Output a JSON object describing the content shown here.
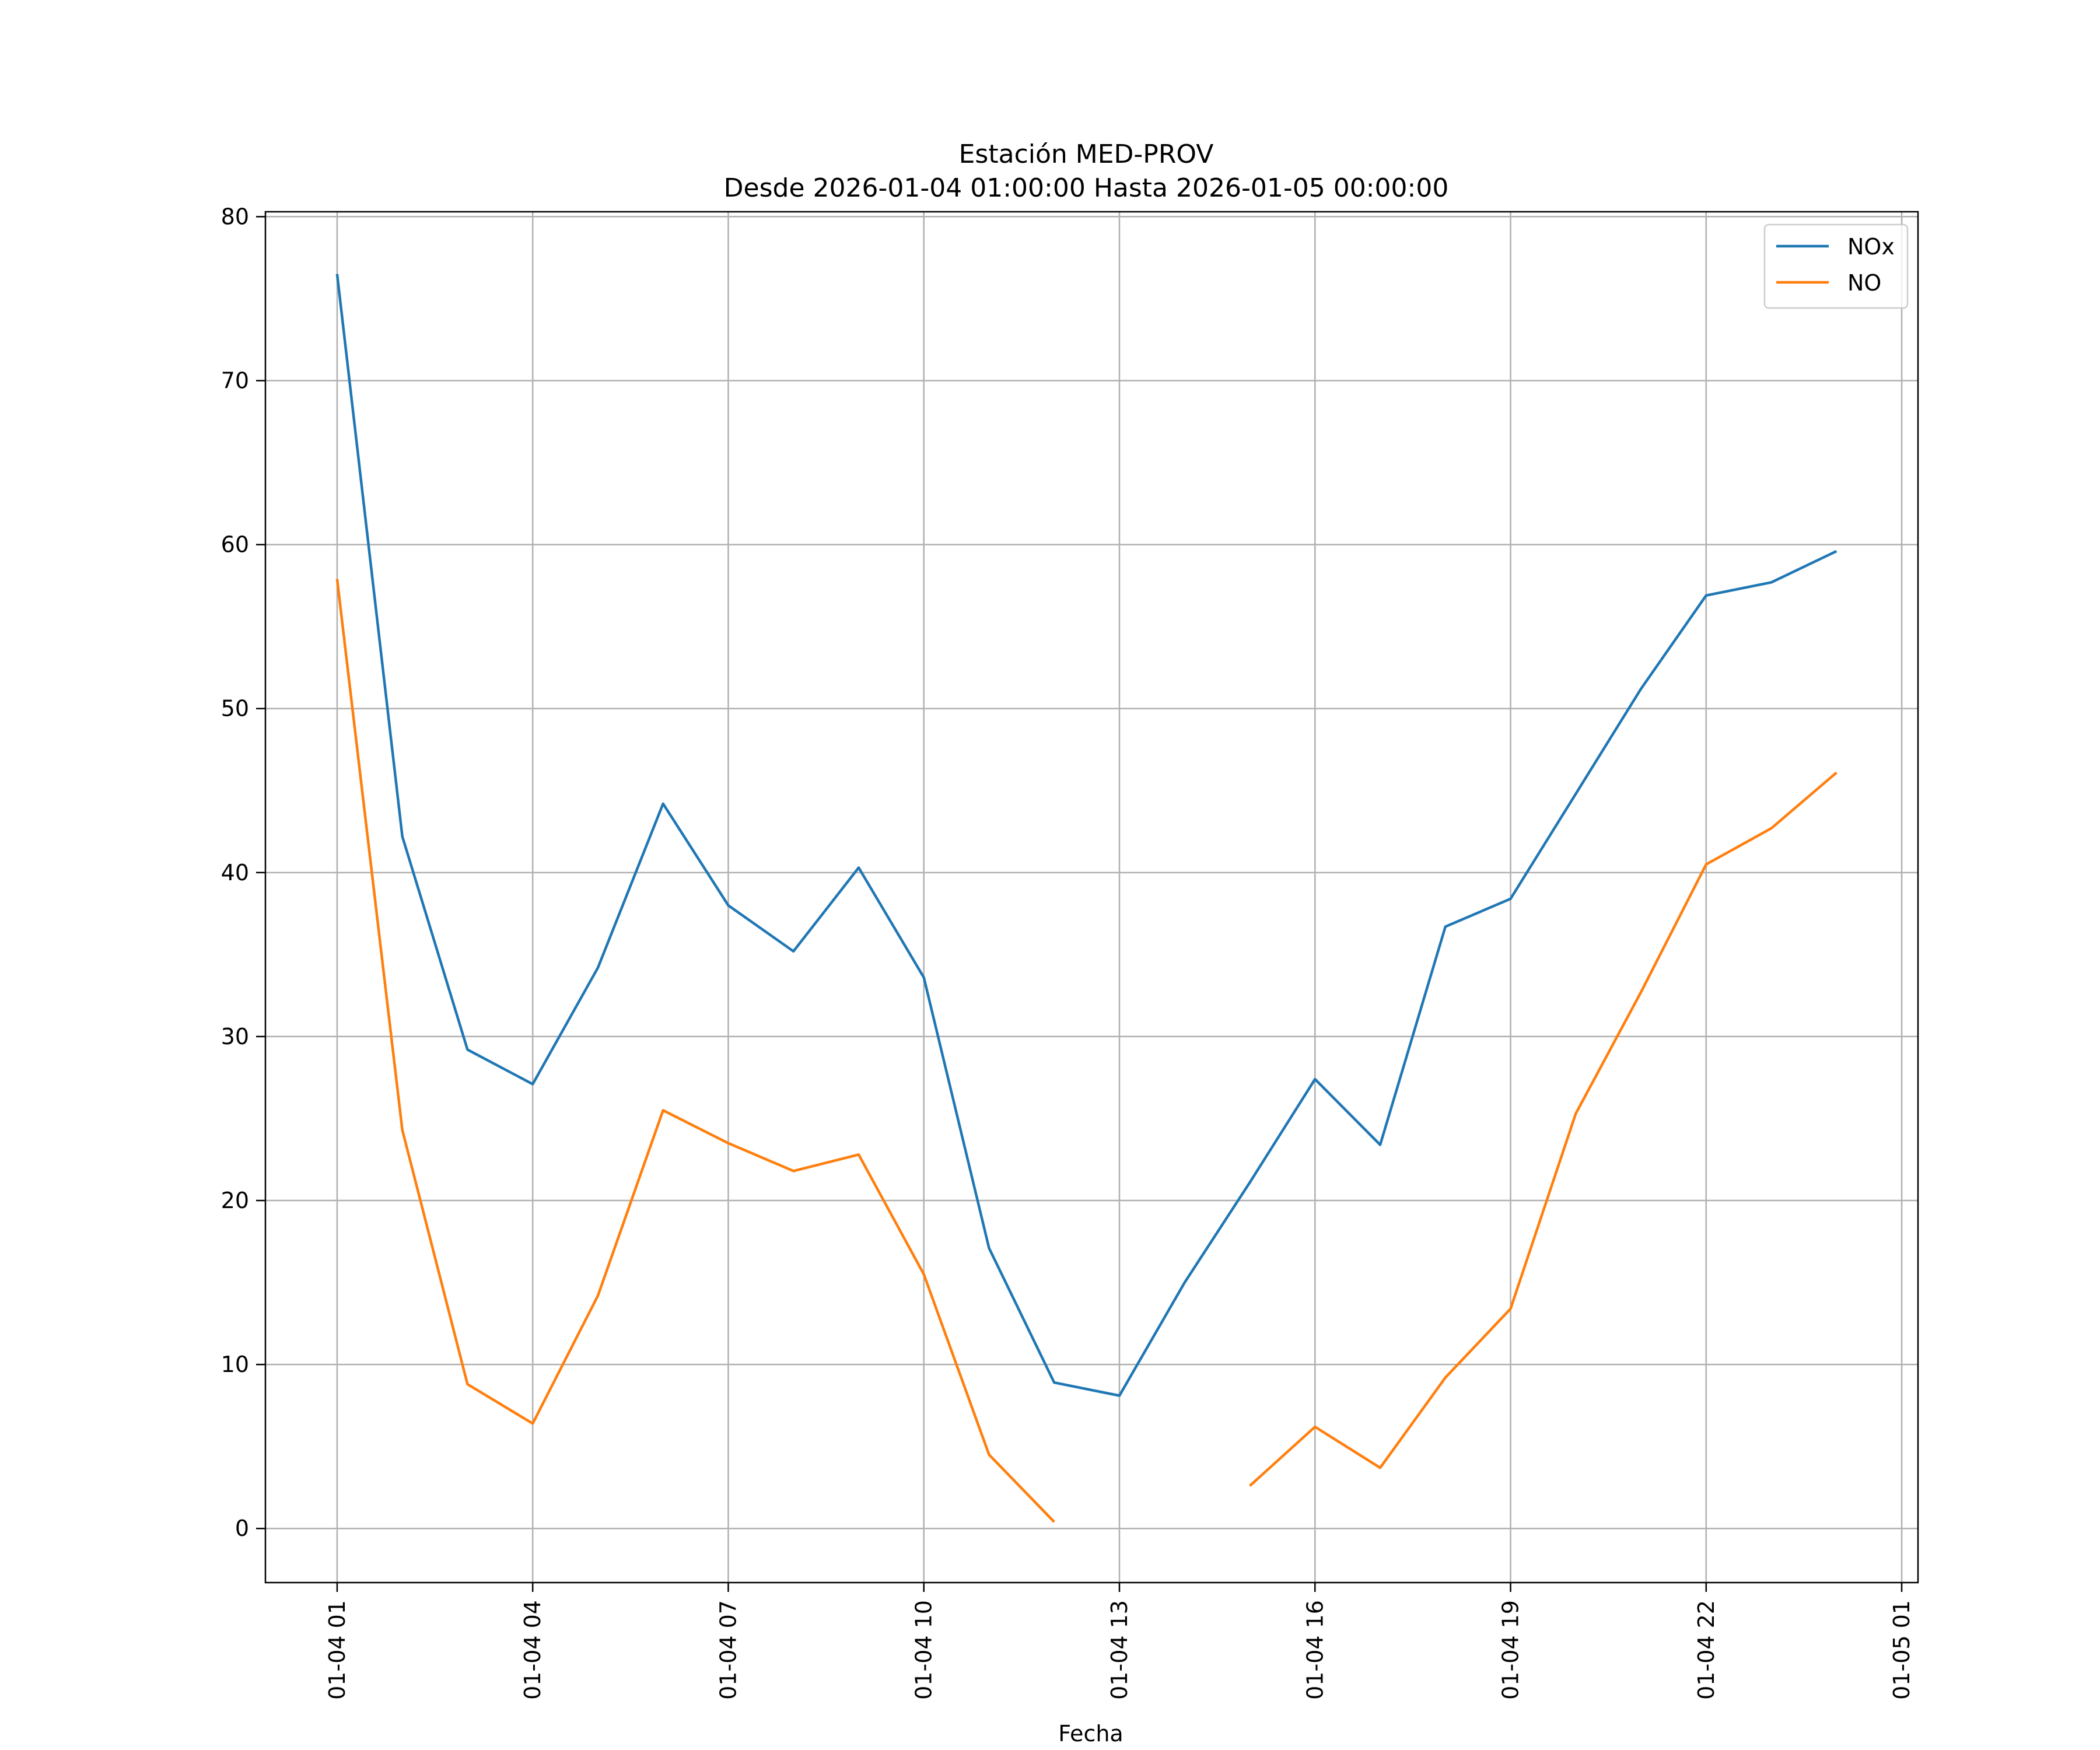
{
  "chart_data": {
    "type": "line",
    "title": "Estación MED-PROV",
    "subtitle": "Desde 2026-01-04 01:00:00 Hasta 2026-01-05 00:00:00",
    "xlabel": "Fecha",
    "ylabel": "",
    "x_hours": [
      1,
      2,
      3,
      4,
      5,
      6,
      7,
      8,
      9,
      10,
      11,
      12,
      13,
      14,
      15,
      16,
      17,
      18,
      19,
      20,
      21,
      22,
      23,
      24
    ],
    "xlim": [
      -0.1,
      25.25
    ],
    "ylim": [
      -3.3,
      80.3
    ],
    "grid": true,
    "legend_position": "top-right",
    "xticks": [
      {
        "hour": 1,
        "label": "01-04 01"
      },
      {
        "hour": 4,
        "label": "01-04 04"
      },
      {
        "hour": 7,
        "label": "01-04 07"
      },
      {
        "hour": 10,
        "label": "01-04 10"
      },
      {
        "hour": 13,
        "label": "01-04 13"
      },
      {
        "hour": 16,
        "label": "01-04 16"
      },
      {
        "hour": 19,
        "label": "01-04 19"
      },
      {
        "hour": 22,
        "label": "01-04 22"
      },
      {
        "hour": 25,
        "label": "01-05 01"
      }
    ],
    "yticks": [
      {
        "value": 0,
        "label": "0"
      },
      {
        "value": 10,
        "label": "10"
      },
      {
        "value": 20,
        "label": "20"
      },
      {
        "value": 30,
        "label": "30"
      },
      {
        "value": 40,
        "label": "40"
      },
      {
        "value": 50,
        "label": "50"
      },
      {
        "value": 60,
        "label": "60"
      },
      {
        "value": 70,
        "label": "70"
      },
      {
        "value": 80,
        "label": "80"
      }
    ],
    "series": [
      {
        "name": "NOx",
        "color": "#1f77b4",
        "values": [
          76.5,
          42.2,
          29.2,
          27.1,
          34.2,
          44.2,
          38.0,
          35.2,
          40.3,
          33.6,
          17.1,
          8.9,
          8.1,
          15.0,
          21.1,
          27.4,
          23.4,
          36.7,
          38.4,
          44.8,
          51.2,
          56.9,
          57.7,
          59.6
        ]
      },
      {
        "name": "NO",
        "color": "#ff7f0e",
        "values": [
          57.9,
          24.3,
          8.8,
          6.4,
          14.2,
          25.5,
          23.5,
          21.8,
          22.8,
          15.5,
          4.5,
          0.4,
          null,
          null,
          2.6,
          6.2,
          3.7,
          9.2,
          13.4,
          25.3,
          32.7,
          40.5,
          42.7,
          46.1
        ]
      }
    ]
  }
}
